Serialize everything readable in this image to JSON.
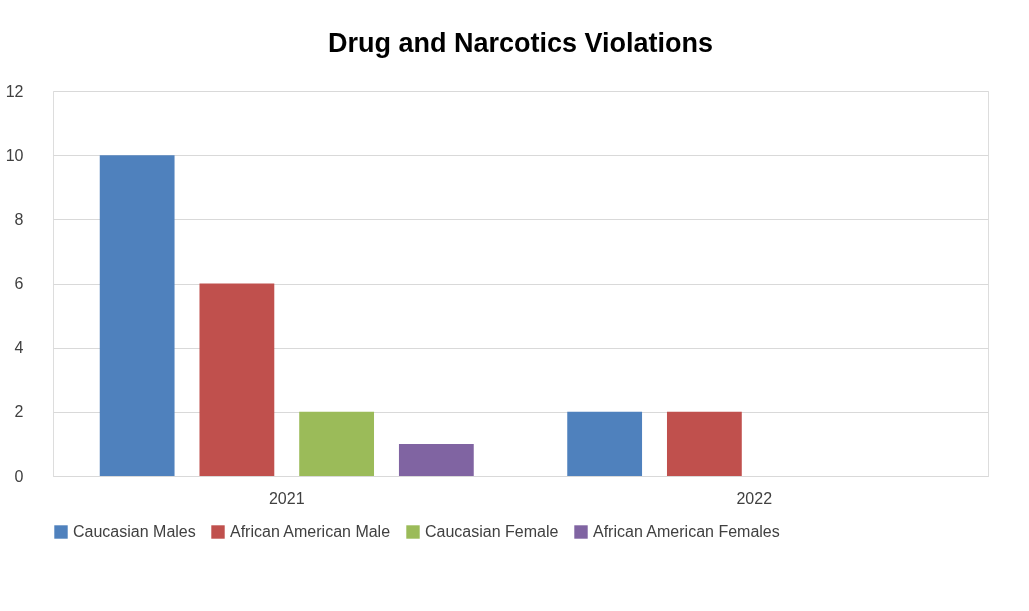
{
  "chart_data": {
    "type": "bar",
    "title": "Drug and Narcotics Violations",
    "categories": [
      "2021",
      "2022"
    ],
    "series": [
      {
        "name": "Caucasian Males",
        "color": "#4f81bd",
        "values": [
          10,
          2
        ]
      },
      {
        "name": "African American Male",
        "color": "#c0504d",
        "values": [
          6,
          2
        ]
      },
      {
        "name": "Caucasian Female",
        "color": "#9bbb59",
        "values": [
          2,
          0
        ]
      },
      {
        "name": "African American Females",
        "color": "#8064a2",
        "values": [
          1,
          0
        ]
      }
    ],
    "ylim": [
      0,
      12
    ],
    "yticks": [
      0,
      2,
      4,
      6,
      8,
      10,
      12
    ],
    "grid": "y",
    "legend": "bottom"
  }
}
